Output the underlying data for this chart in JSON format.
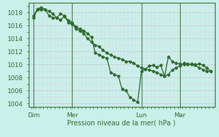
{
  "xlabel": "Pression niveau de la mer( hPa )",
  "bg_color": "#caf0ea",
  "line_color": "#2d6a2d",
  "grid_major_color": "#c8b8c8",
  "grid_minor_color": "#dcd0dc",
  "axis_color": "#2d6a2d",
  "ylim": [
    1003.5,
    1019.5
  ],
  "yticks": [
    1004,
    1006,
    1008,
    1010,
    1012,
    1014,
    1016,
    1018
  ],
  "xlim": [
    -5,
    285
  ],
  "day_positions": [
    3,
    63,
    171,
    231
  ],
  "day_labels": [
    "Dim",
    "Mer",
    "Lun",
    "Mar"
  ],
  "vline_positions": [
    3,
    63,
    171,
    231
  ],
  "line1_x": [
    3,
    9,
    15,
    21,
    27,
    33,
    39,
    45,
    51,
    57,
    63,
    69,
    75,
    81,
    87,
    93,
    99,
    105,
    111,
    117,
    123,
    129,
    135,
    141,
    147,
    153,
    159,
    165,
    171,
    177,
    183,
    189,
    195,
    201,
    207,
    213,
    219,
    225,
    231,
    237,
    243,
    249,
    255,
    261,
    267,
    273,
    279
  ],
  "line1_y": [
    1017.2,
    1018.5,
    1018.8,
    1018.5,
    1017.5,
    1017.2,
    1017.2,
    1017.8,
    1017.5,
    1016.5,
    1016.2,
    1015.5,
    1015.2,
    1014.8,
    1014.0,
    1013.5,
    1013.0,
    1012.8,
    1012.2,
    1011.8,
    1011.5,
    1011.2,
    1011.0,
    1010.8,
    1010.5,
    1010.5,
    1010.2,
    1009.8,
    1009.5,
    1009.3,
    1009.2,
    1009.0,
    1008.8,
    1008.5,
    1008.2,
    1008.5,
    1009.2,
    1009.5,
    1009.8,
    1010.2,
    1010.0,
    1010.1,
    1010.0,
    1010.1,
    1009.9,
    1009.5,
    1009.0
  ],
  "line2_x": [
    3,
    9,
    15,
    21,
    27,
    33,
    39,
    45,
    51,
    57,
    63,
    69,
    75,
    81,
    87,
    93,
    99,
    105,
    111,
    117,
    123,
    129,
    135,
    141,
    147,
    153,
    159,
    165,
    171,
    177,
    183,
    189,
    195,
    201,
    207,
    213,
    219,
    225,
    231,
    237,
    243,
    249,
    255,
    261,
    267,
    273,
    279
  ],
  "line2_y": [
    1017.5,
    1018.6,
    1018.5,
    1018.4,
    1018.2,
    1017.8,
    1017.2,
    1016.9,
    1017.4,
    1016.8,
    1016.5,
    1015.8,
    1015.5,
    1015.2,
    1014.8,
    1014.2,
    1011.8,
    1011.5,
    1011.2,
    1011.0,
    1008.8,
    1008.5,
    1008.2,
    1006.2,
    1006.0,
    1005.0,
    1004.6,
    1004.2,
    1009.0,
    1009.3,
    1009.8,
    1009.9,
    1009.6,
    1009.9,
    1008.2,
    1011.2,
    1010.5,
    1010.2,
    1010.1,
    1010.0,
    1010.1,
    1010.0,
    1009.9,
    1009.5,
    1009.2,
    1009.0,
    1009.0
  ],
  "marker": "D",
  "markersize": 2.0,
  "linewidth": 1.0
}
